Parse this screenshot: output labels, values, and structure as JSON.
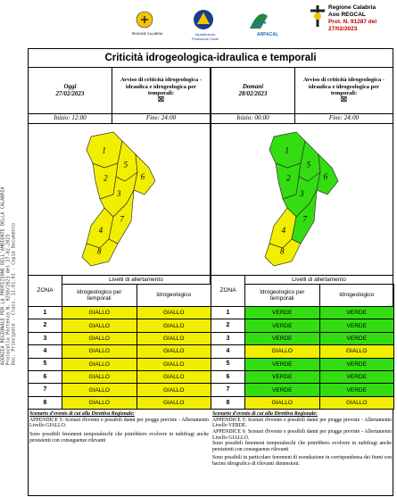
{
  "header": {
    "logos": [
      "REGIONE CALABRIA",
      "Dipartimento Protezione Civile",
      "ARPACAL"
    ],
    "org_lines": [
      "Regione Calabria",
      "Aoo REGCAL",
      "Prot. N. 91287 del 27/02/2023"
    ]
  },
  "side_stamp": [
    "AGENZIA REGIONALE PER LA PROTEZIONE DELL'AMBIENTE DELLA CALABRIA",
    "Protocollo Partenza N. 9250/2023 del 27-02-2023",
    "Doc. Principale - Class. 11.01.01 - Copia Documento"
  ],
  "title": "Criticità idrogeologica-idraulica e temporali",
  "level_colors": {
    "GIALLO": "#f2ee00",
    "VERDE": "#33dd11"
  },
  "columns": [
    {
      "day": "Oggi",
      "date": "27/02/2023",
      "notice": "Avviso di criticità idrogeologica - idraulica e idrogeologica per temporali:",
      "checkbox": "☒",
      "start": "Inizio: 12:00",
      "end": "Fine: 24:00",
      "table": {
        "zone_header": "ZONA",
        "levels_header": "Livelli di allertamento",
        "col_headers": [
          "Idrogeologico per temporali",
          "Idrogeologico"
        ],
        "rows": [
          [
            1,
            "GIALLO",
            "GIALLO"
          ],
          [
            2,
            "GIALLO",
            "GIALLO"
          ],
          [
            3,
            "GIALLO",
            "GIALLO"
          ],
          [
            4,
            "GIALLO",
            "GIALLO"
          ],
          [
            5,
            "GIALLO",
            "GIALLO"
          ],
          [
            6,
            "GIALLO",
            "GIALLO"
          ],
          [
            7,
            "GIALLO",
            "GIALLO"
          ],
          [
            8,
            "GIALLO",
            "GIALLO"
          ]
        ]
      },
      "note_title": "Scenario d'evento di cui alla Direttiva Regionale:",
      "notes": [
        "APPENDICE 5: Scenari d'evento e possibili danni per piogge previste - Allertamento Livello GIALLO.",
        "Sono possibili fenomeni temporaleschi che potrebbero evolvere in nubifragi anche persistenti con conseguenze rilevanti"
      ]
    },
    {
      "day": "Domani",
      "date": "28/02/2023",
      "notice": "Avviso di criticità idrogeologica - idraulica e idrogeologica per temporali:",
      "checkbox": "☒",
      "start": "Inizio: 00:00",
      "end": "Fine: 24:00",
      "table": {
        "zone_header": "ZONA",
        "levels_header": "Livelli di allertamento",
        "col_headers": [
          "Idrogeologico per temporali",
          "Idrogeologico"
        ],
        "rows": [
          [
            1,
            "VERDE",
            "VERDE"
          ],
          [
            2,
            "VERDE",
            "VERDE"
          ],
          [
            3,
            "VERDE",
            "VERDE"
          ],
          [
            4,
            "GIALLO",
            "GIALLO"
          ],
          [
            5,
            "VERDE",
            "VERDE"
          ],
          [
            6,
            "VERDE",
            "VERDE"
          ],
          [
            7,
            "VERDE",
            "VERDE"
          ],
          [
            8,
            "GIALLO",
            "GIALLO"
          ]
        ]
      },
      "note_title": "Scenario d'evento di cui alla Direttiva Regionale:",
      "notes": [
        "APPENDICE 5: Scenari d'evento e possibili danni per piogge previste - Allertamento Livello VERDE.",
        "APPENDICE 6: Scenari d'evento e possibili danni per piogge previste - Allertamento Livello GIALLO.",
        "Sono possibili fenomeni temporaleschi che potrebbero evolvere in nubifragi anche persistenti con conseguenze rilevanti",
        "Sono possibili in particolare fenomeni di esondazione in corrispondenza dei fiumi con bacino idrografico di rilevanti dimensioni."
      ]
    }
  ]
}
